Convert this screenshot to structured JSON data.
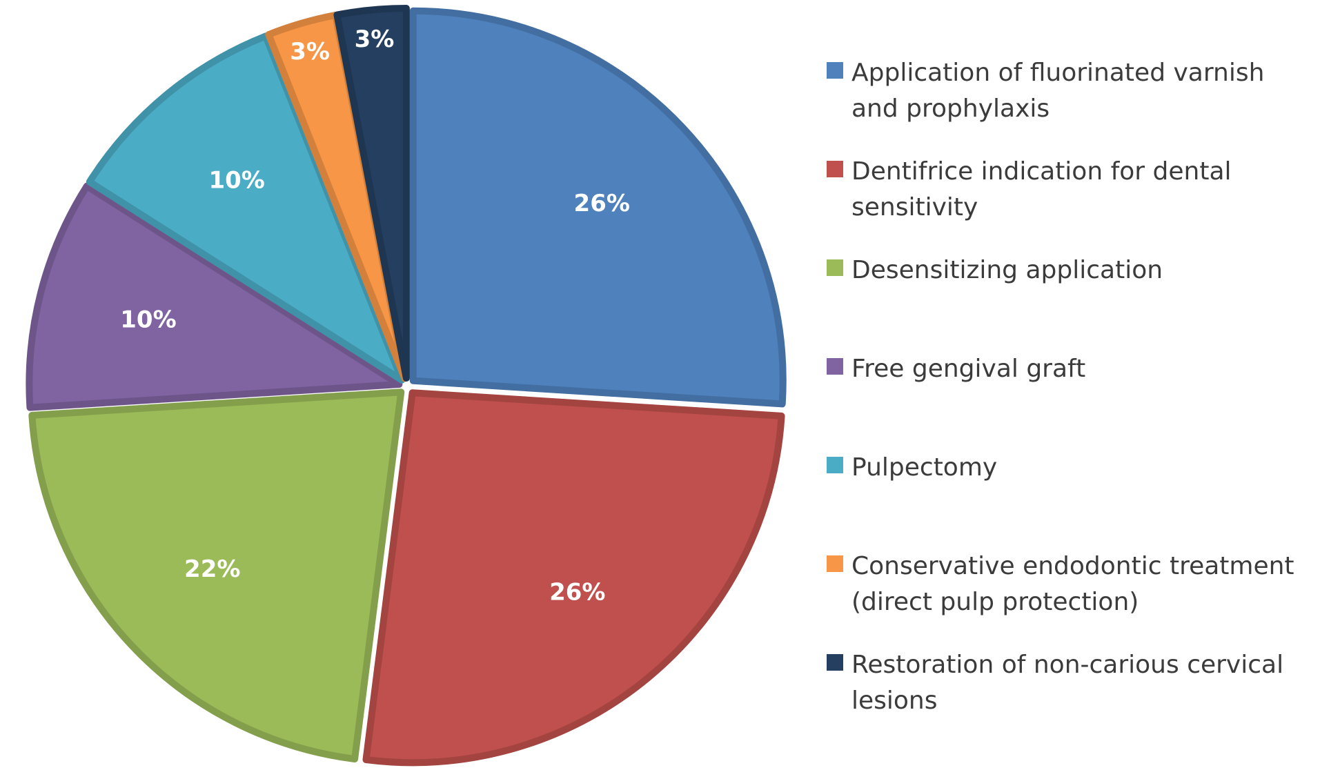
{
  "chart_data": {
    "type": "pie",
    "slices": [
      {
        "label": "Application of fluorinated varnish and prophylaxis",
        "value": 26,
        "display": "26%",
        "color": "#4f81bd"
      },
      {
        "label": "Dentifrice indication for dental sensitivity",
        "value": 26,
        "display": "26%",
        "color": "#c0504d"
      },
      {
        "label": "Desensitizing application",
        "value": 22,
        "display": "22%",
        "color": "#9bbb59"
      },
      {
        "label": "Free gengival graft",
        "value": 10,
        "display": "10%",
        "color": "#8064a2"
      },
      {
        "label": "Pulpectomy",
        "value": 10,
        "display": "10%",
        "color": "#4bacc6"
      },
      {
        "label": "Conservative endodontic treatment (direct pulp protection)",
        "value": 3,
        "display": "3%",
        "color": "#f79646"
      },
      {
        "label": "Restoration of non-carious cervical lesions",
        "value": 3,
        "display": "3%",
        "color": "#243f60"
      }
    ],
    "start_angle_deg": 0,
    "direction": "clockwise",
    "exploded": true,
    "legend_position": "right"
  }
}
